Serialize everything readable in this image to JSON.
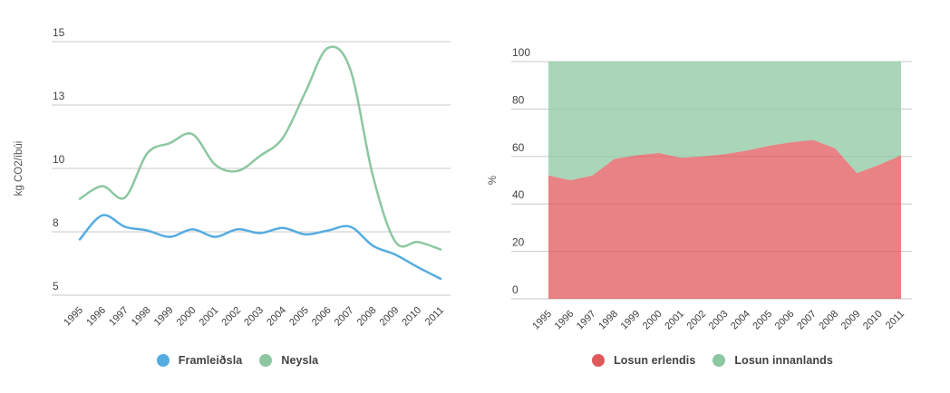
{
  "page": {
    "background": "#ffffff"
  },
  "chart_data": [
    {
      "type": "line",
      "title": "",
      "xlabel": "",
      "ylabel": "kg CO2/íbúi",
      "ylim": [
        5,
        15
      ],
      "grid": true,
      "legend_position": "bottom",
      "y_ticks": {
        "labels": [
          "15",
          "13",
          "10",
          "8",
          "5"
        ],
        "values": [
          15,
          12.5,
          10,
          7.5,
          5
        ]
      },
      "categories": [
        "1995",
        "1996",
        "1997",
        "1998",
        "1999",
        "2000",
        "2001",
        "2002",
        "2003",
        "2004",
        "2005",
        "2006",
        "2007",
        "2008",
        "2009",
        "2010",
        "2011"
      ],
      "series": [
        {
          "name": "Framleiðsla",
          "color": "#55ace0",
          "values": [
            7.2,
            8.15,
            7.7,
            7.55,
            7.3,
            7.6,
            7.3,
            7.6,
            7.45,
            7.65,
            7.4,
            7.55,
            7.7,
            6.95,
            6.6,
            6.1,
            5.65
          ]
        },
        {
          "name": "Neysla",
          "color": "#8cc7a1",
          "values": [
            8.8,
            9.3,
            8.85,
            10.6,
            11.0,
            11.35,
            10.15,
            9.9,
            10.5,
            11.2,
            13.0,
            14.75,
            13.9,
            9.7,
            7.1,
            7.1,
            6.8
          ]
        }
      ]
    },
    {
      "type": "area",
      "stacked_percent": true,
      "title": "",
      "xlabel": "",
      "ylabel": "%",
      "ylim": [
        0,
        100
      ],
      "grid": true,
      "legend_position": "bottom",
      "y_ticks": {
        "labels": [
          "100",
          "80",
          "60",
          "40",
          "20",
          "0"
        ],
        "values": [
          100,
          80,
          60,
          40,
          20,
          0
        ]
      },
      "categories": [
        "1995",
        "1996",
        "1997",
        "1998",
        "1999",
        "2000",
        "2001",
        "2002",
        "2003",
        "2004",
        "2005",
        "2006",
        "2007",
        "2008",
        "2009",
        "2010",
        "2011"
      ],
      "series": [
        {
          "name": "Losun erlendis",
          "color": "#e0585b",
          "values": [
            52,
            50,
            52,
            59,
            60.5,
            61.5,
            59.5,
            60,
            61,
            62.5,
            64.5,
            66,
            67,
            63.5,
            53,
            56.5,
            60.5
          ]
        },
        {
          "name": "Losun innanlands",
          "color": "#8cc7a1",
          "values": [
            48,
            50,
            48,
            41,
            39.5,
            38.5,
            40.5,
            40,
            39,
            37.5,
            35.5,
            34,
            33,
            36.5,
            47,
            43.5,
            39.5
          ]
        }
      ]
    }
  ]
}
